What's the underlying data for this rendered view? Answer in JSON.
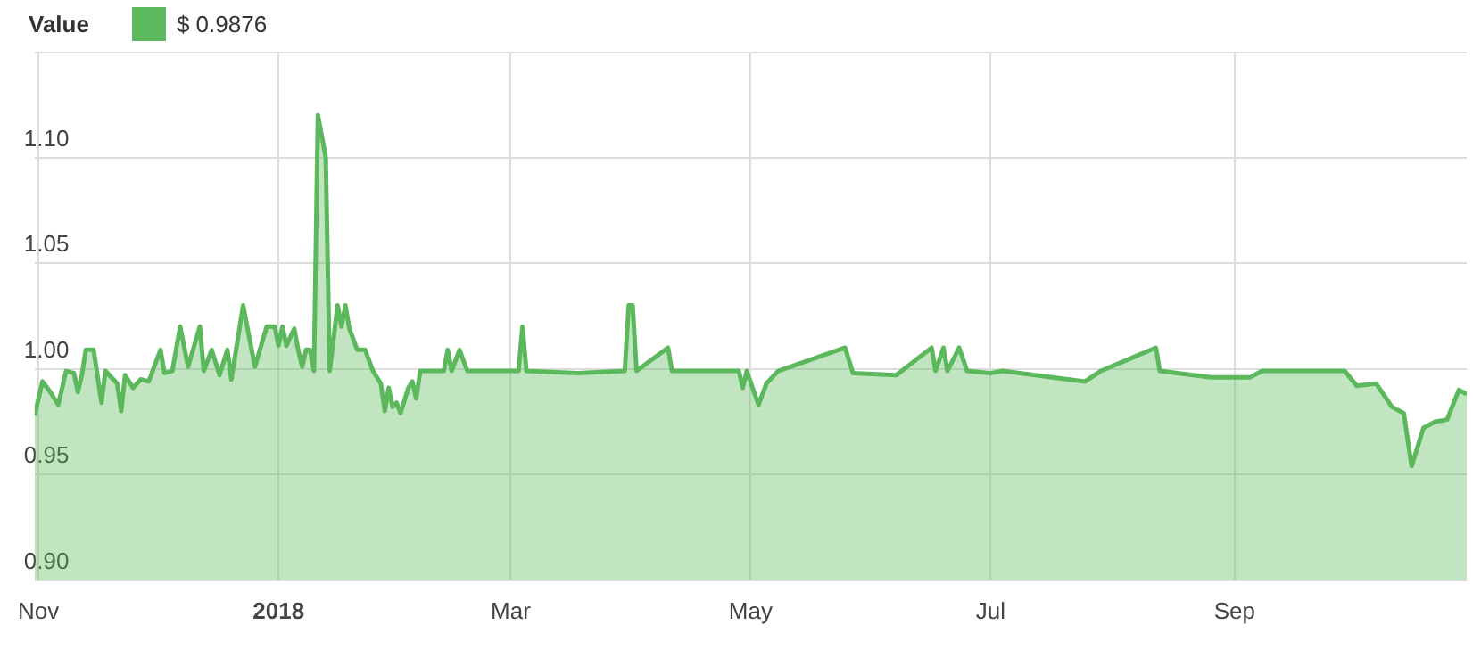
{
  "chart_data": {
    "type": "area",
    "legend_title": "Value",
    "legend": "top left",
    "grid": true,
    "marker": "none",
    "xlim": [
      "2017-10-31",
      "2018-10-30"
    ],
    "xticks": [
      {
        "value": "2017-11-01",
        "label": "Nov"
      },
      {
        "value": "2018-01-01",
        "label": "2018"
      },
      {
        "value": "2018-03-01",
        "label": "Mar"
      },
      {
        "value": "2018-05-01",
        "label": "May"
      },
      {
        "value": "2018-07-01",
        "label": "Jul"
      },
      {
        "value": "2018-09-01",
        "label": "Sep"
      }
    ],
    "ylim": [
      0.9,
      1.15
    ],
    "yticks": [
      {
        "value": 0.9,
        "label": "0.90"
      },
      0.95,
      {
        "value": 1.0,
        "label": "1.00"
      },
      1.05,
      {
        "value": 1.1,
        "label": "1.10"
      }
    ],
    "x": [
      "2017-10-31",
      "2017-11-02",
      "2017-11-04",
      "2017-11-06",
      "2017-11-08",
      "2017-11-10",
      "2017-11-11",
      "2017-11-12",
      "2017-11-13",
      "2017-11-15",
      "2017-11-17",
      "2017-11-18",
      "2017-11-21",
      "2017-11-22",
      "2017-11-23",
      "2017-11-25",
      "2017-11-27",
      "2017-11-29",
      "2017-12-02",
      "2017-12-03",
      "2017-12-05",
      "2017-12-07",
      "2017-12-09",
      "2017-12-12",
      "2017-12-13",
      "2017-12-15",
      "2017-12-17",
      "2017-12-19",
      "2017-12-20",
      "2017-12-23",
      "2017-12-26",
      "2017-12-29",
      "2017-12-31",
      "2018-01-01",
      "2018-01-02",
      "2018-01-03",
      "2018-01-05",
      "2018-01-06",
      "2018-01-07",
      "2018-01-08",
      "2018-01-09",
      "2018-01-10",
      "2018-01-11",
      "2018-01-13",
      "2018-01-14",
      "2018-01-16",
      "2018-01-17",
      "2018-01-18",
      "2018-01-19",
      "2018-01-21",
      "2018-01-23",
      "2018-01-25",
      "2018-01-27",
      "2018-01-28",
      "2018-01-29",
      "2018-01-30",
      "2018-01-31",
      "2018-02-01",
      "2018-02-03",
      "2018-02-04",
      "2018-02-05",
      "2018-02-06",
      "2018-02-12",
      "2018-02-13",
      "2018-02-14",
      "2018-02-16",
      "2018-02-18",
      "2018-03-03",
      "2018-03-04",
      "2018-03-05",
      "2018-03-18",
      "2018-03-30",
      "2018-03-31",
      "2018-04-01",
      "2018-04-02",
      "2018-04-10",
      "2018-04-11",
      "2018-04-28",
      "2018-04-29",
      "2018-04-30",
      "2018-05-03",
      "2018-05-05",
      "2018-05-08",
      "2018-05-25",
      "2018-05-27",
      "2018-06-07",
      "2018-06-16",
      "2018-06-17",
      "2018-06-19",
      "2018-06-20",
      "2018-06-23",
      "2018-06-25",
      "2018-07-01",
      "2018-07-04",
      "2018-07-25",
      "2018-07-29",
      "2018-08-12",
      "2018-08-13",
      "2018-08-26",
      "2018-09-05",
      "2018-09-08",
      "2018-09-29",
      "2018-10-02",
      "2018-10-07",
      "2018-10-11",
      "2018-10-14",
      "2018-10-16",
      "2018-10-19",
      "2018-10-22",
      "2018-10-25",
      "2018-10-28",
      "2018-10-30"
    ],
    "series": [
      {
        "name": "$ 0.9876",
        "color": "#5cb85c",
        "values": [
          0.978,
          0.994,
          0.989,
          0.983,
          0.999,
          0.998,
          0.989,
          0.997,
          1.009,
          1.009,
          0.984,
          0.999,
          0.993,
          0.98,
          0.997,
          0.991,
          0.995,
          0.994,
          1.009,
          0.998,
          0.999,
          1.02,
          1.001,
          1.02,
          0.999,
          1.009,
          0.997,
          1.009,
          0.995,
          1.03,
          1.001,
          1.02,
          1.02,
          1.011,
          1.02,
          1.011,
          1.019,
          1.009,
          1.001,
          1.009,
          1.009,
          0.999,
          1.12,
          1.1,
          0.999,
          1.03,
          1.02,
          1.03,
          1.019,
          1.009,
          1.009,
          0.999,
          0.993,
          0.98,
          0.991,
          0.982,
          0.984,
          0.979,
          0.991,
          0.994,
          0.986,
          0.999,
          0.999,
          1.009,
          0.999,
          1.009,
          0.999,
          0.999,
          1.02,
          0.999,
          0.998,
          0.999,
          1.03,
          1.03,
          0.999,
          1.01,
          0.999,
          0.999,
          0.991,
          0.999,
          0.983,
          0.993,
          0.999,
          1.01,
          0.998,
          0.997,
          1.01,
          0.999,
          1.01,
          0.999,
          1.01,
          0.999,
          0.998,
          0.999,
          0.994,
          0.999,
          1.01,
          0.999,
          0.996,
          0.996,
          0.999,
          0.999,
          0.992,
          0.993,
          0.982,
          0.979,
          0.954,
          0.972,
          0.975,
          0.976,
          0.99,
          0.988
        ]
      }
    ]
  }
}
